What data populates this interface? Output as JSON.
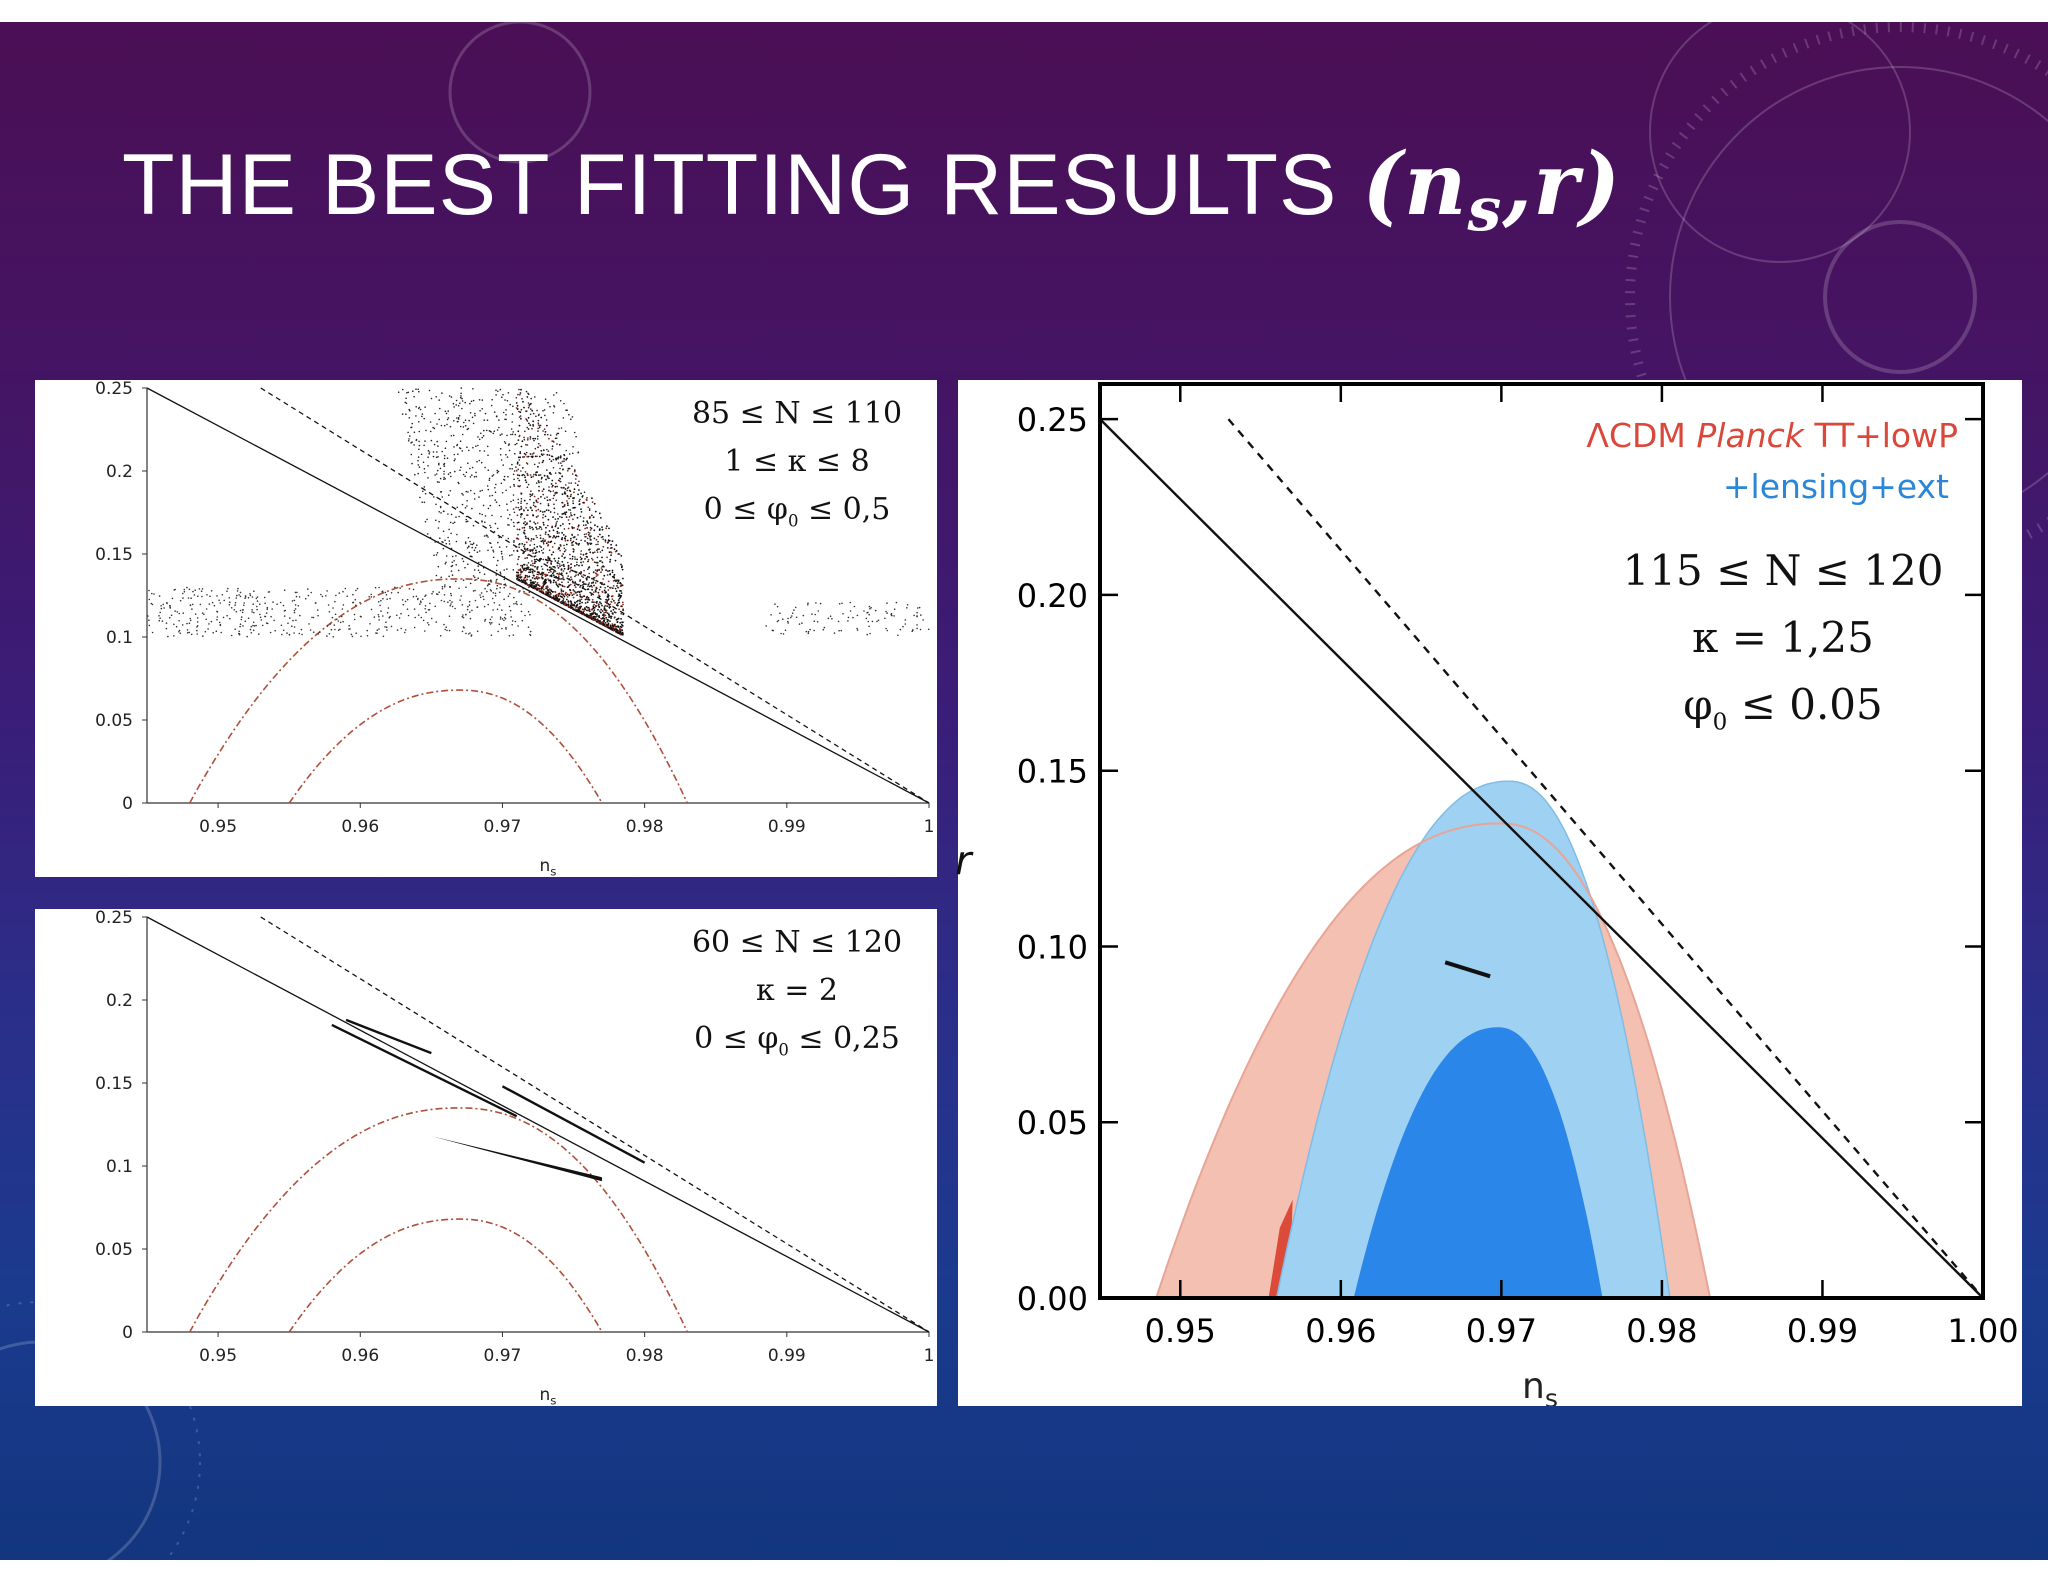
{
  "slide": {
    "title_text": "THE BEST FITTING RESULTS ",
    "title_math": {
      "open": "(",
      "n": "n",
      "sub": "s",
      "comma": ",",
      "r": "r",
      "close": ")"
    },
    "r_axis_label": "r",
    "background_colors": {
      "top": "#4a0f55",
      "bottom": "#13367f"
    }
  },
  "chart_data": [
    {
      "type": "scatter",
      "panel": "top-left",
      "xlabel": "ns",
      "ylabel": "",
      "xlim": [
        0.945,
        1.0
      ],
      "ylim": [
        0,
        0.25
      ],
      "xticks": [
        "0.95",
        "0.96",
        "0.97",
        "0.98",
        "0.99",
        "1"
      ],
      "yticks": [
        "0",
        "0.05",
        "0.1",
        "0.15",
        "0.2",
        "0.25"
      ],
      "annotations": [
        "85 ≤ N ≤ 110",
        "1 ≤ κ ≤ 8",
        "0 ≤ φ0 ≤ 0,5"
      ],
      "lines": [
        {
          "name": "",
          "style": "solid",
          "points": [
            [
              0.945,
              0.25
            ],
            [
              1.0,
              0.0
            ]
          ]
        },
        {
          "name": "",
          "style": "dashed",
          "points": [
            [
              0.953,
              0.25
            ],
            [
              1.0,
              0.0
            ]
          ]
        }
      ],
      "contours": [
        {
          "style": "dashdot",
          "color": "#b0503a",
          "x_range": [
            0.948,
            0.983
          ],
          "peak": [
            0.967,
            0.135
          ]
        },
        {
          "style": "dashdot",
          "color": "#b0503a",
          "x_range": [
            0.955,
            0.977
          ],
          "peak": [
            0.967,
            0.068
          ]
        }
      ],
      "scatter_regions": [
        {
          "name": "",
          "description_x": [
            0.971,
            0.978
          ],
          "y": [
            0.105,
            0.25
          ]
        },
        {
          "name": "",
          "x": [
            0.945,
            0.972
          ],
          "y": [
            0.1,
            0.13
          ]
        },
        {
          "name": "",
          "x": [
            0.988,
            1.0
          ],
          "y": [
            0.1,
            0.12
          ]
        }
      ]
    },
    {
      "type": "line",
      "panel": "bottom-left",
      "xlabel": "ns",
      "ylabel": "",
      "xlim": [
        0.945,
        1.0
      ],
      "ylim": [
        0,
        0.25
      ],
      "xticks": [
        "0.95",
        "0.96",
        "0.97",
        "0.98",
        "0.99",
        "1"
      ],
      "yticks": [
        "0",
        "0.05",
        "0.1",
        "0.15",
        "0.2",
        "0.25"
      ],
      "annotations": [
        "60 ≤ N ≤ 120",
        "κ = 2",
        "0 ≤ φ0 ≤ 0,25"
      ],
      "lines": [
        {
          "name": "",
          "style": "solid",
          "points": [
            [
              0.945,
              0.25
            ],
            [
              1.0,
              0.0
            ]
          ]
        },
        {
          "name": "",
          "style": "dashed",
          "points": [
            [
              0.953,
              0.25
            ],
            [
              1.0,
              0.0
            ]
          ]
        }
      ],
      "contours": [
        {
          "style": "dashdot",
          "color": "#b0503a",
          "x_range": [
            0.948,
            0.983
          ],
          "peak": [
            0.967,
            0.135
          ]
        },
        {
          "style": "dashdot",
          "color": "#b0503a",
          "x_range": [
            0.955,
            0.977
          ],
          "peak": [
            0.967,
            0.068
          ]
        }
      ],
      "result_bands": [
        {
          "name": "",
          "points": [
            [
              0.958,
              0.185
            ],
            [
              0.971,
              0.13
            ]
          ]
        },
        {
          "name": "",
          "points": [
            [
              0.959,
              0.188
            ],
            [
              0.965,
              0.168
            ]
          ]
        },
        {
          "name": "",
          "points": [
            [
              0.97,
              0.148
            ],
            [
              0.98,
              0.102
            ]
          ]
        },
        {
          "name": "",
          "points": [
            [
              0.965,
              0.118
            ],
            [
              0.977,
              0.092
            ]
          ]
        }
      ]
    },
    {
      "type": "area",
      "panel": "right",
      "xlabel": "ns",
      "ylabel": "r",
      "xlim": [
        0.945,
        1.0
      ],
      "ylim": [
        0,
        0.26
      ],
      "xticks": [
        "0.95",
        "0.96",
        "0.97",
        "0.98",
        "0.99",
        "1.00"
      ],
      "yticks": [
        "0.00",
        "0.05",
        "0.10",
        "0.15",
        "0.20",
        "0.25"
      ],
      "legend": [
        {
          "prefix": "ΛCDM ",
          "italic": "Planck",
          "suffix": " TT+lowP",
          "color": "#d9483b"
        },
        {
          "text": "+lensing+ext",
          "color": "#2a86d8"
        }
      ],
      "legend_position": "top-right",
      "annotations": [
        "115 ≤ N ≤ 120",
        "κ = 1,25",
        "φ0 ≤ 0.05"
      ],
      "lines": [
        {
          "name": "",
          "style": "solid",
          "points": [
            [
              0.945,
              0.25
            ],
            [
              1.0,
              0.0
            ]
          ]
        },
        {
          "name": "",
          "style": "dashed",
          "points": [
            [
              0.953,
              0.25
            ],
            [
              1.0,
              0.0
            ]
          ]
        }
      ],
      "regions": [
        {
          "name": "Planck TT+lowP 95%",
          "color": "#f3c0b1",
          "x_range": [
            0.9485,
            0.983
          ],
          "peak": [
            0.97,
            0.135
          ]
        },
        {
          "name": "Planck TT+lowP 68%",
          "color": "#dc4a3a",
          "x_range": [
            0.9555,
            0.957
          ],
          "peak": [
            0.957,
            0.027
          ]
        },
        {
          "name": "+lensing+ext 95%",
          "color": "#9fd1f2",
          "x_range": [
            0.956,
            0.9805
          ],
          "peak": [
            0.9705,
            0.147
          ]
        },
        {
          "name": "+lensing+ext 68%",
          "color": "#2a86e8",
          "x_range": [
            0.9608,
            0.9763
          ],
          "peak": [
            0.9698,
            0.077
          ]
        }
      ],
      "result_segment": [
        [
          0.9665,
          0.0955
        ],
        [
          0.9693,
          0.0915
        ]
      ]
    }
  ]
}
